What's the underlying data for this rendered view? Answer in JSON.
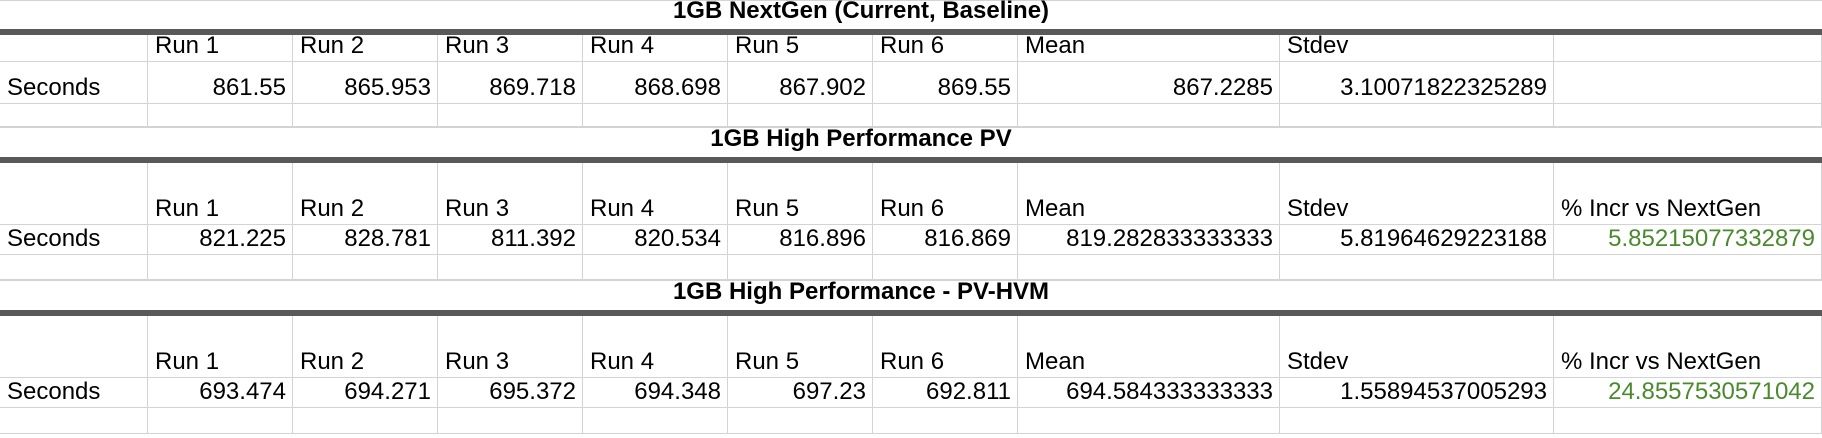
{
  "tables": [
    {
      "title": "1GB NextGen (Current, Baseline)",
      "headers": [
        "",
        "Run 1",
        "Run 2",
        "Run 3",
        "Run 4",
        "Run 5",
        "Run 6",
        "Mean",
        "Stdev",
        ""
      ],
      "row_label": "Seconds",
      "values": [
        "861.55",
        "865.953",
        "869.718",
        "868.698",
        "867.902",
        "869.55",
        "867.2285",
        "3.10071822325289",
        ""
      ]
    },
    {
      "title": "1GB High Performance PV",
      "headers": [
        "",
        "Run 1",
        "Run 2",
        "Run 3",
        "Run 4",
        "Run 5",
        "Run 6",
        "Mean",
        "Stdev",
        "% Incr vs NextGen"
      ],
      "row_label": "Seconds",
      "values": [
        "821.225",
        "828.781",
        "811.392",
        "820.534",
        "816.896",
        "816.869",
        "819.282833333333",
        "5.81964629223188",
        "5.85215077332879"
      ]
    },
    {
      "title": "1GB High Performance - PV-HVM",
      "headers": [
        "",
        "Run 1",
        "Run 2",
        "Run 3",
        "Run 4",
        "Run 5",
        "Run 6",
        "Mean",
        "Stdev",
        "% Incr vs NextGen"
      ],
      "row_label": "Seconds",
      "values": [
        "693.474",
        "694.271",
        "695.372",
        "694.348",
        "697.23",
        "692.811",
        "694.584333333333",
        "1.55894537005293",
        "24.8557530571042"
      ]
    }
  ],
  "colors": {
    "percent_text": "#4a8a2e",
    "title_rule": "#595959",
    "gridline": "#d3d3d3"
  }
}
